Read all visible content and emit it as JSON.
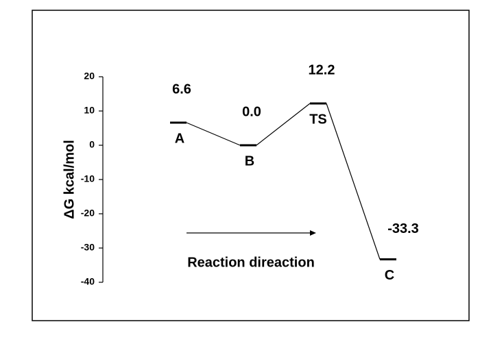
{
  "chart_data": {
    "type": "line",
    "ylabel": "ΔG kcal/mol",
    "annotation": "Reaction direaction",
    "categories": [
      "A",
      "B",
      "TS",
      "C"
    ],
    "values": [
      6.6,
      0,
      12.2,
      -33.3
    ],
    "value_labels": [
      "6.6",
      "0.0",
      "12.2",
      "-33.3"
    ],
    "color": "#000000",
    "ylim": [
      -40,
      20
    ],
    "yticks": [
      20,
      10,
      0,
      -10,
      -20,
      -30,
      -40
    ],
    "grid": false
  }
}
